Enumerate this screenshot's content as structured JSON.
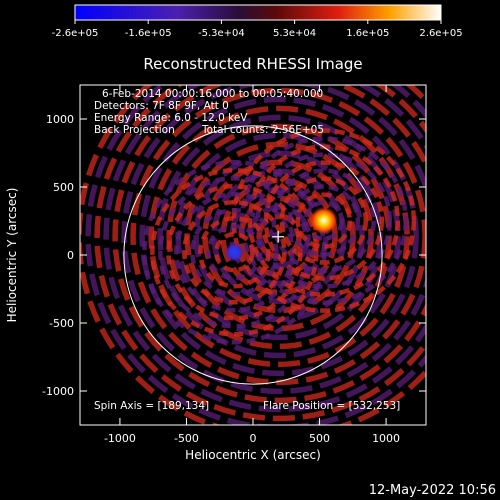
{
  "colorbar": {
    "ticks": [
      "-2.6e+05",
      "-1.6e+05",
      "-5.3e+04",
      "5.3e+04",
      "1.6e+05",
      "2.6e+05"
    ],
    "range": [
      -260000,
      260000
    ]
  },
  "info": {
    "time_range": "6-Feb-2014 00:00:16.000 to 00:05:40.000",
    "detectors": "Detectors: 7F 8F 9F, Att 0",
    "energy": "Energy Range: 6.0 - 12.0 keV",
    "method": "Back Projection",
    "counts": "Total counts: 2.56E+05"
  },
  "footer": {
    "spin_axis": "Spin Axis = [189,134]",
    "flare_position": "Flare Position = [532,253]",
    "timestamp": "12-May-2022 10:56"
  },
  "colors": {
    "background": "#000000",
    "axes": "#ffffff",
    "positive": "#d22a1e",
    "negative": "#5a1e78"
  },
  "chart_data": {
    "type": "heatmap",
    "title": "Reconstructed RHESSI Image",
    "xlabel": "Heliocentric X (arcsec)",
    "ylabel": "Heliocentric Y (arcsec)",
    "xlim": [
      -1300,
      1300
    ],
    "ylim": [
      -1250,
      1250
    ],
    "xticks": [
      -1000,
      -500,
      0,
      500,
      1000
    ],
    "xtick_labels": [
      "-1000",
      "-500",
      "0",
      "500",
      "1000"
    ],
    "yticks": [
      -1000,
      -500,
      0,
      500,
      1000
    ],
    "ytick_labels": [
      "-1000",
      "-500",
      "0",
      "500",
      "1000"
    ],
    "solar_limb_radius": 970,
    "spin_axis": [
      189,
      134
    ],
    "flare_position": [
      532,
      253
    ],
    "sources": [
      {
        "x": 532,
        "y": 253,
        "value": 260000
      },
      {
        "x": -140,
        "y": 20,
        "value": -260000
      }
    ]
  }
}
